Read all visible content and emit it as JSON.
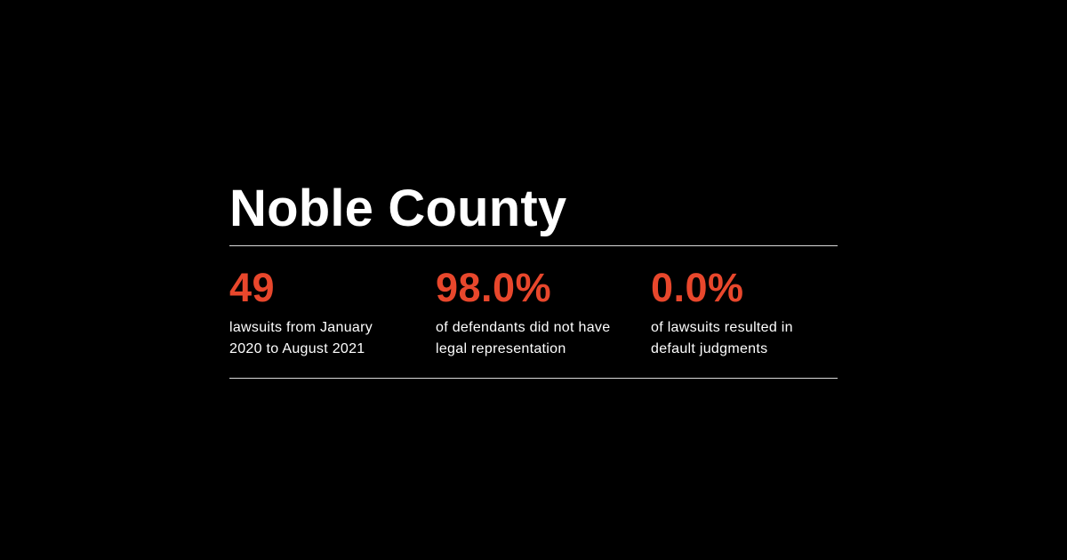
{
  "title": "Noble County",
  "accent_color": "#e8472c",
  "stats": [
    {
      "value": "49",
      "label_line1": "lawsuits from January",
      "label_line2": "2020 to August 2021"
    },
    {
      "value": "98.0%",
      "label_line1": "of defendants did not have",
      "label_line2": "legal representation"
    },
    {
      "value": "0.0%",
      "label_line1": "of lawsuits resulted in",
      "label_line2": "default judgments"
    }
  ]
}
